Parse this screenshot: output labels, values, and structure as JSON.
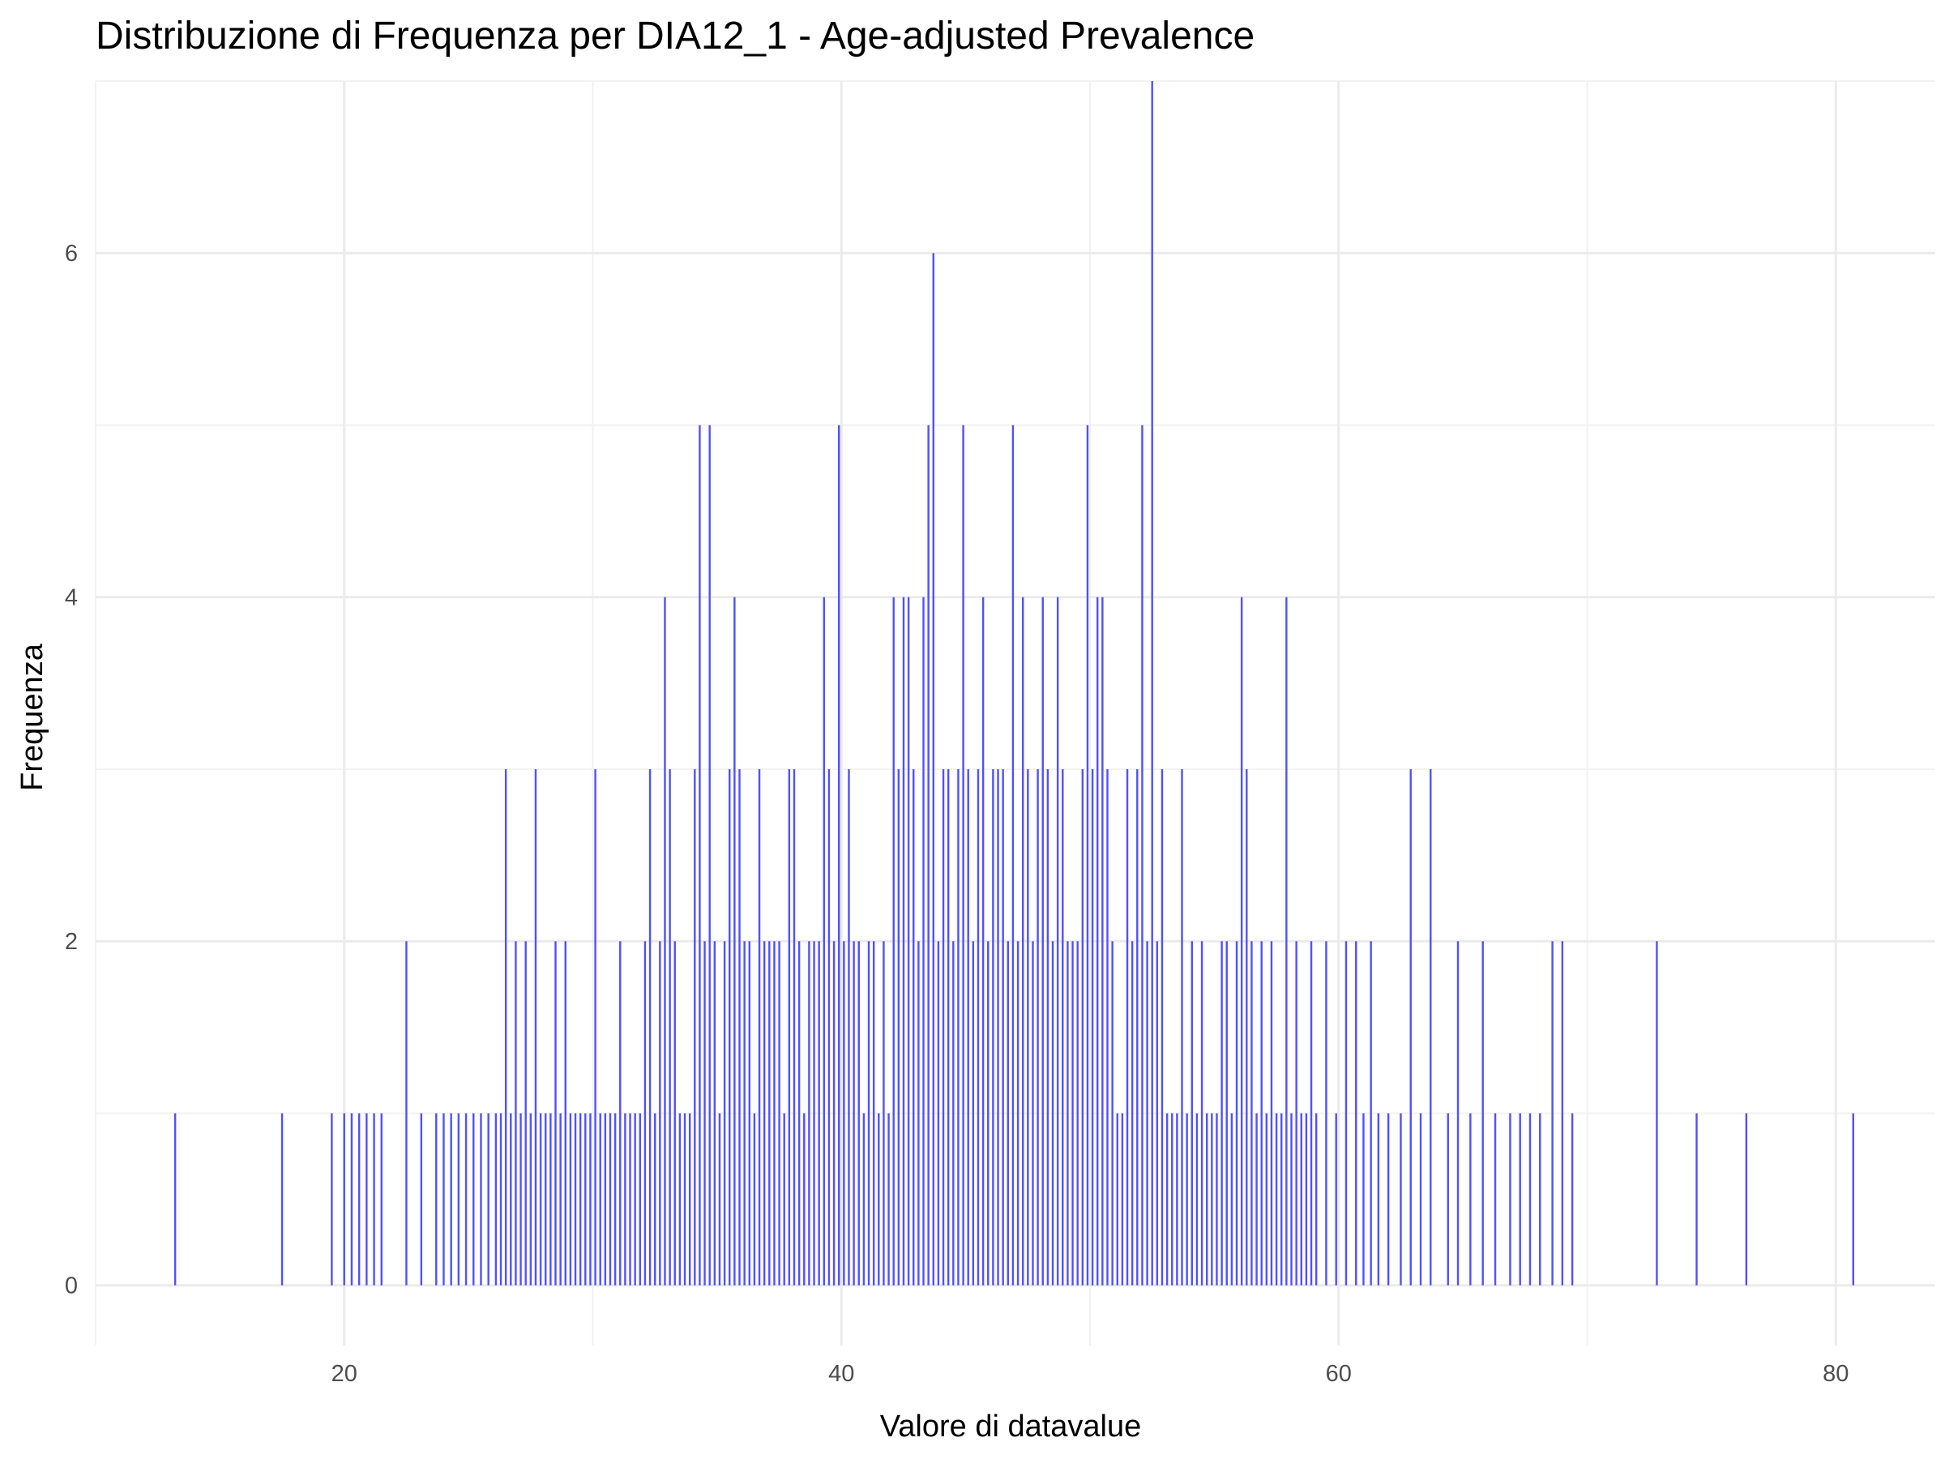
{
  "chart_data": {
    "type": "bar",
    "title": "Distribuzione di Frequenza per DIA12_1 - Age-adjusted Prevalence",
    "xlabel": "Valore di datavalue",
    "ylabel": "Frequenza",
    "xlim": [
      10,
      84
    ],
    "ylim": [
      -0.35,
      7.0
    ],
    "x_ticks": [
      20,
      40,
      60,
      80
    ],
    "y_ticks": [
      0,
      2,
      4,
      6
    ],
    "grid": true,
    "bar_color": "#5050ff",
    "series": [
      {
        "x": [
          13.2,
          17.5,
          19.5,
          20.0,
          20.3,
          20.6,
          20.9,
          21.2,
          21.5,
          22.5,
          23.1,
          23.7,
          24.0,
          24.3,
          24.6,
          24.9,
          25.2,
          25.5,
          25.8,
          26.1,
          26.3,
          26.5,
          26.7,
          26.9,
          27.1,
          27.3,
          27.5,
          27.7,
          27.9,
          28.1,
          28.3,
          28.5,
          28.7,
          28.9,
          29.1,
          29.3,
          29.5,
          29.7,
          29.9,
          30.1,
          30.3,
          30.5,
          30.7,
          30.9,
          31.1,
          31.3,
          31.5,
          31.7,
          31.9,
          32.1,
          32.3,
          32.5,
          32.7,
          32.9,
          33.1,
          33.3,
          33.5,
          33.7,
          33.9,
          34.1,
          34.3,
          34.5,
          34.7,
          34.9,
          35.1,
          35.3,
          35.5,
          35.7,
          35.9,
          36.1,
          36.3,
          36.5,
          36.7,
          36.9,
          37.1,
          37.3,
          37.5,
          37.7,
          37.9,
          38.1,
          38.3,
          38.5,
          38.7,
          38.9,
          39.1,
          39.3,
          39.5,
          39.7,
          39.9,
          40.1,
          40.3,
          40.5,
          40.7,
          40.9,
          41.1,
          41.3,
          41.5,
          41.7,
          41.9,
          42.1,
          42.3,
          42.5,
          42.7,
          42.9,
          43.1,
          43.3,
          43.5,
          43.7,
          43.9,
          44.1,
          44.3,
          44.5,
          44.7,
          44.9,
          45.1,
          45.3,
          45.5,
          45.7,
          45.9,
          46.1,
          46.3,
          46.5,
          46.7,
          46.9,
          47.1,
          47.3,
          47.5,
          47.7,
          47.9,
          48.1,
          48.3,
          48.5,
          48.7,
          48.9,
          49.1,
          49.3,
          49.5,
          49.7,
          49.9,
          50.1,
          50.3,
          50.5,
          50.7,
          50.9,
          51.1,
          51.3,
          51.5,
          51.7,
          51.9,
          52.1,
          52.3,
          52.5,
          52.7,
          52.9,
          53.1,
          53.3,
          53.5,
          53.7,
          53.9,
          54.1,
          54.3,
          54.5,
          54.7,
          54.9,
          55.1,
          55.3,
          55.5,
          55.7,
          55.9,
          56.1,
          56.3,
          56.5,
          56.7,
          56.9,
          57.1,
          57.3,
          57.5,
          57.7,
          57.9,
          58.1,
          58.3,
          58.5,
          58.7,
          58.9,
          59.1,
          59.5,
          59.9,
          60.3,
          60.7,
          61.0,
          61.3,
          61.6,
          62.0,
          62.5,
          62.9,
          63.3,
          63.7,
          64.4,
          64.8,
          65.3,
          65.8,
          66.3,
          66.9,
          67.3,
          67.7,
          68.1,
          68.6,
          69.0,
          69.4,
          72.8,
          74.4,
          76.4,
          80.7
        ],
        "values": [
          1,
          1,
          1,
          1,
          1,
          1,
          1,
          1,
          1,
          2,
          1,
          1,
          1,
          1,
          1,
          1,
          1,
          1,
          1,
          1,
          1,
          3,
          1,
          2,
          1,
          2,
          1,
          3,
          1,
          1,
          1,
          2,
          1,
          2,
          1,
          1,
          1,
          1,
          1,
          3,
          1,
          1,
          1,
          1,
          2,
          1,
          1,
          1,
          1,
          2,
          3,
          1,
          2,
          4,
          3,
          2,
          1,
          1,
          1,
          3,
          5,
          2,
          5,
          2,
          1,
          2,
          3,
          4,
          3,
          2,
          2,
          1,
          3,
          2,
          2,
          2,
          2,
          1,
          3,
          3,
          2,
          1,
          2,
          2,
          2,
          4,
          3,
          2,
          5,
          2,
          3,
          2,
          2,
          1,
          2,
          2,
          1,
          2,
          1,
          4,
          3,
          4,
          4,
          3,
          2,
          4,
          5,
          6,
          2,
          3,
          3,
          2,
          3,
          5,
          3,
          2,
          3,
          4,
          2,
          3,
          3,
          3,
          2,
          5,
          2,
          4,
          3,
          2,
          3,
          4,
          3,
          2,
          4,
          3,
          2,
          2,
          2,
          3,
          5,
          3,
          4,
          4,
          3,
          2,
          1,
          1,
          3,
          2,
          3,
          5,
          2,
          7,
          2,
          3,
          1,
          1,
          1,
          3,
          1,
          2,
          1,
          2,
          1,
          1,
          1,
          2,
          2,
          1,
          2,
          4,
          3,
          2,
          1,
          2,
          1,
          2,
          1,
          1,
          4,
          1,
          2,
          1,
          1,
          2,
          1,
          2,
          1,
          2,
          2,
          1,
          2,
          1,
          1,
          1,
          3,
          1,
          3,
          1,
          2,
          1,
          2,
          1,
          1,
          1,
          1,
          1,
          2,
          2,
          1,
          2,
          1,
          1,
          1
        ]
      }
    ]
  }
}
